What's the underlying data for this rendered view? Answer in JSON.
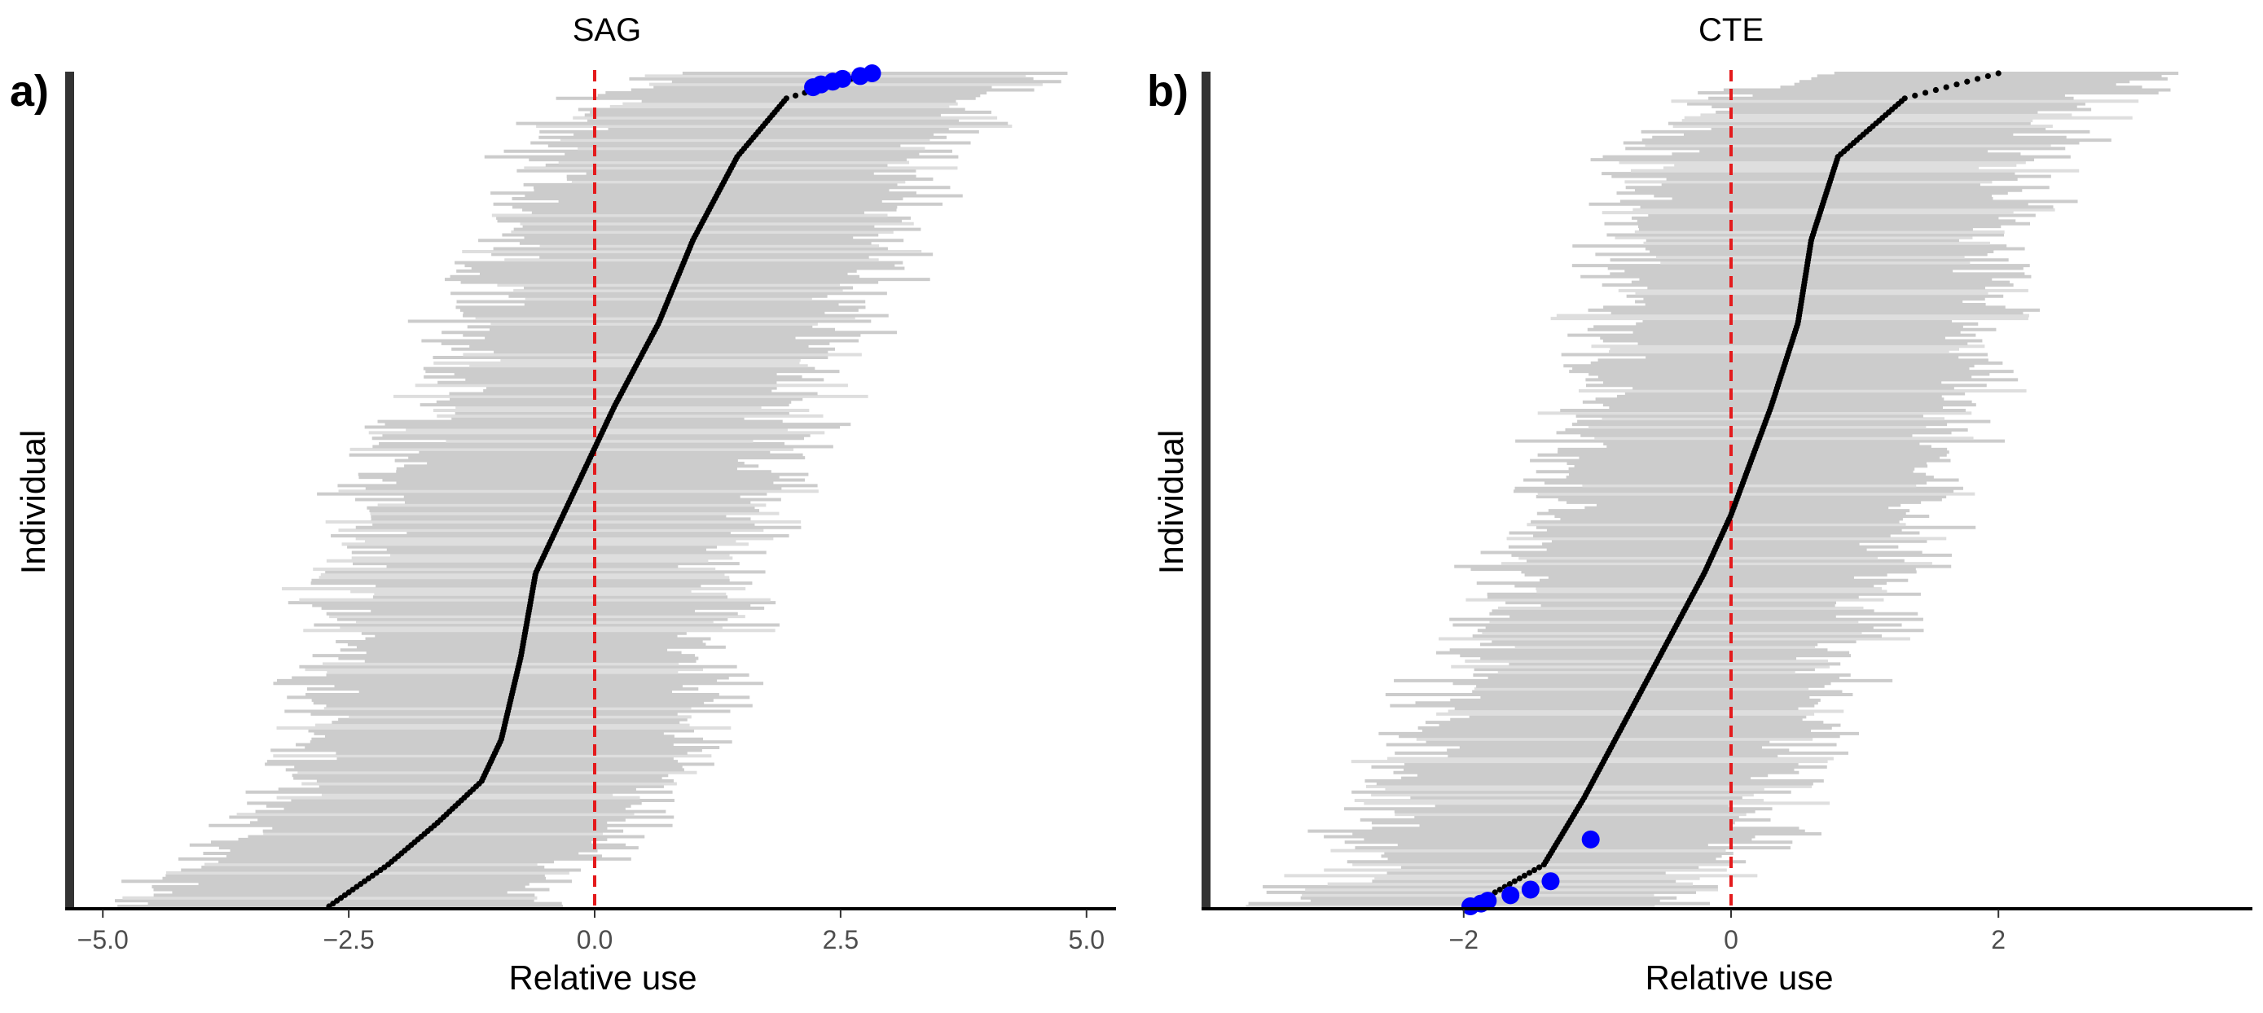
{
  "chart_data": [
    {
      "type": "scatter",
      "panel_label": "a)",
      "title": "SAG",
      "xlabel": "Relative use",
      "ylabel": "Individual",
      "xlim": [
        -5.3,
        5.3
      ],
      "xticks": [
        -5.0,
        -2.5,
        0.0,
        2.5,
        5.0
      ],
      "xtick_labels": [
        "−5.0",
        "−2.5",
        "0.0",
        "2.5",
        "5.0"
      ],
      "reference_line_x": 0,
      "n_individuals": 300,
      "point_color": "#000000",
      "highlight_color": "#0000ff",
      "interval_color": "#cccccc",
      "reference_color": "#e41a1c",
      "estimate_curve": [
        [
          0,
          -2.7
        ],
        [
          0.05,
          -2.1
        ],
        [
          0.1,
          -1.6
        ],
        [
          0.15,
          -1.15
        ],
        [
          0.2,
          -0.95
        ],
        [
          0.3,
          -0.75
        ],
        [
          0.4,
          -0.6
        ],
        [
          0.5,
          -0.2
        ],
        [
          0.6,
          0.2
        ],
        [
          0.7,
          0.65
        ],
        [
          0.8,
          1.0
        ],
        [
          0.9,
          1.45
        ],
        [
          0.97,
          1.95
        ],
        [
          1.0,
          2.8
        ]
      ],
      "interval_halfwidth": 2.05,
      "highlighted_points": [
        {
          "rank": 295,
          "x": 2.22
        },
        {
          "rank": 296,
          "x": 2.3
        },
        {
          "rank": 297,
          "x": 2.42
        },
        {
          "rank": 298,
          "x": 2.52
        },
        {
          "rank": 299,
          "x": 2.7
        },
        {
          "rank": 300,
          "x": 2.82
        }
      ]
    },
    {
      "type": "scatter",
      "panel_label": "b)",
      "title": "CTE",
      "xlabel": "Relative use",
      "ylabel": "Individual",
      "xlim": [
        -3.9,
        3.9
      ],
      "xticks": [
        -2,
        0,
        2
      ],
      "xtick_labels": [
        "−2",
        "0",
        "2"
      ],
      "reference_line_x": 0,
      "n_individuals": 300,
      "point_color": "#000000",
      "highlight_color": "#0000ff",
      "interval_color": "#cccccc",
      "reference_color": "#e41a1c",
      "estimate_curve": [
        [
          0,
          -1.95
        ],
        [
          0.05,
          -1.4
        ],
        [
          0.13,
          -1.1
        ],
        [
          0.25,
          -0.7
        ],
        [
          0.4,
          -0.2
        ],
        [
          0.47,
          0.0
        ],
        [
          0.6,
          0.3
        ],
        [
          0.7,
          0.5
        ],
        [
          0.8,
          0.6
        ],
        [
          0.9,
          0.8
        ],
        [
          0.97,
          1.3
        ],
        [
          1.0,
          2.0
        ]
      ],
      "interval_halfwidth": 1.5,
      "highlighted_points": [
        {
          "rank": 1,
          "x": -1.95
        },
        {
          "rank": 2,
          "x": -1.87
        },
        {
          "rank": 3,
          "x": -1.82
        },
        {
          "rank": 5,
          "x": -1.65
        },
        {
          "rank": 7,
          "x": -1.5
        },
        {
          "rank": 10,
          "x": -1.35
        },
        {
          "rank": 25,
          "x": -1.05
        }
      ]
    }
  ]
}
